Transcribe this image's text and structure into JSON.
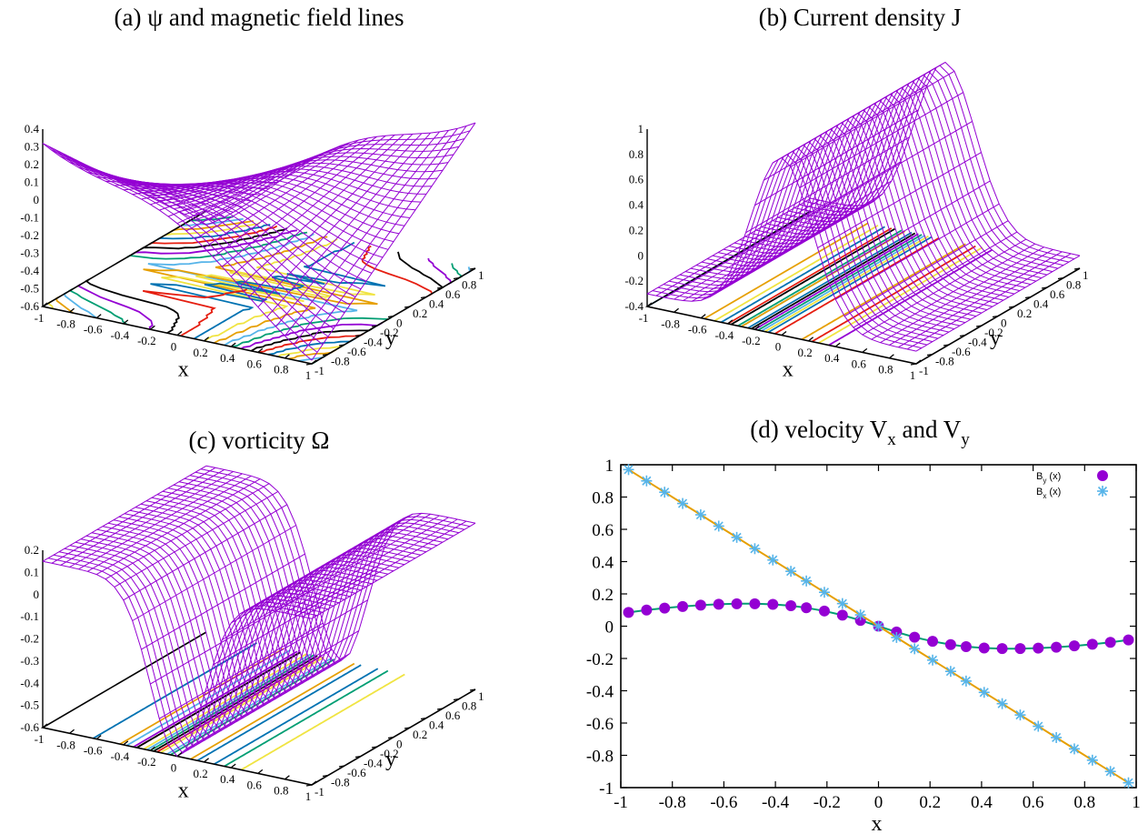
{
  "chart_data": [
    {
      "id": "a",
      "type": "surface3d",
      "title": "(a) ψ and magnetic field lines",
      "xlabel": "x",
      "ylabel": "y",
      "xticks": [
        "-1",
        "-0.8",
        "-0.6",
        "-0.4",
        "-0.2",
        "0",
        "0.2",
        "0.4",
        "0.6",
        "0.8",
        "1"
      ],
      "yticks": [
        "-1",
        "-0.8",
        "-0.6",
        "-0.4",
        "-0.2",
        "0",
        "0.2",
        "0.4",
        "0.6",
        "0.8",
        "1"
      ],
      "zticks": [
        "0.4",
        "0.3",
        "0.2",
        "0.1",
        "0",
        "-0.1",
        "-0.2",
        "-0.3",
        "-0.4",
        "-0.5",
        "-0.6"
      ],
      "zlim": [
        -0.6,
        0.4
      ],
      "surface_color": "#9400d3",
      "base_contours": true
    },
    {
      "id": "b",
      "type": "surface3d",
      "title": "(b) Current density J",
      "xlabel": "x",
      "ylabel": "y",
      "xticks": [
        "-1",
        "-0.8",
        "-0.6",
        "-0.4",
        "-0.2",
        "0",
        "0.2",
        "0.4",
        "0.6",
        "0.8",
        "1"
      ],
      "yticks": [
        "-1",
        "-0.8",
        "-0.6",
        "-0.4",
        "-0.2",
        "0",
        "0.2",
        "0.4",
        "0.6",
        "0.8",
        "1"
      ],
      "zticks": [
        "1",
        "0.8",
        "0.6",
        "0.4",
        "0.2",
        "0",
        "-0.2",
        "-0.4"
      ],
      "zlim": [
        -0.4,
        1
      ],
      "surface_color": "#9400d3",
      "base_contours": true
    },
    {
      "id": "c",
      "type": "surface3d",
      "title": "(c) vorticity Ω",
      "xlabel": "x",
      "ylabel": "y",
      "xticks": [
        "-1",
        "-0.8",
        "-0.6",
        "-0.4",
        "-0.2",
        "0",
        "0.2",
        "0.4",
        "0.6",
        "0.8",
        "1"
      ],
      "yticks": [
        "-1",
        "-0.8",
        "-0.6",
        "-0.4",
        "-0.2",
        "0",
        "0.2",
        "0.4",
        "0.6",
        "0.8",
        "1"
      ],
      "zticks": [
        "0.2",
        "0.1",
        "0",
        "-0.1",
        "-0.2",
        "-0.3",
        "-0.4",
        "-0.5",
        "-0.6"
      ],
      "zlim": [
        -0.6,
        0.2
      ],
      "surface_color": "#9400d3",
      "base_contours": true
    },
    {
      "id": "d",
      "type": "line",
      "title_main": "(d) velocity V",
      "title_sub1": "x",
      "title_mid": " and V",
      "title_sub2": "y",
      "xlabel": "x",
      "xlim": [
        -1,
        1
      ],
      "ylim": [
        -1,
        1
      ],
      "xticks": [
        "-1",
        "-0.8",
        "-0.6",
        "-0.4",
        "-0.2",
        "0",
        "0.2",
        "0.4",
        "0.6",
        "0.8",
        "1"
      ],
      "yticks": [
        "1",
        "0.8",
        "0.6",
        "0.4",
        "0.2",
        "0",
        "-0.2",
        "-0.4",
        "-0.6",
        "-0.8",
        "-1"
      ],
      "series": [
        {
          "name": "B",
          "name_sub": "y",
          "name_tail": " (x)",
          "marker": "circle",
          "marker_color": "#9400d3",
          "line_color": "#009e73",
          "x": [
            -0.97,
            -0.9,
            -0.83,
            -0.76,
            -0.69,
            -0.62,
            -0.55,
            -0.48,
            -0.41,
            -0.34,
            -0.28,
            -0.21,
            -0.14,
            -0.07,
            0.0,
            0.07,
            0.14,
            0.21,
            0.28,
            0.34,
            0.41,
            0.48,
            0.55,
            0.62,
            0.69,
            0.76,
            0.83,
            0.9,
            0.97
          ],
          "y": [
            0.085,
            0.1,
            0.112,
            0.122,
            0.13,
            0.136,
            0.139,
            0.139,
            0.135,
            0.127,
            0.114,
            0.094,
            0.068,
            0.036,
            0.0,
            -0.036,
            -0.068,
            -0.094,
            -0.114,
            -0.127,
            -0.135,
            -0.139,
            -0.139,
            -0.136,
            -0.13,
            -0.122,
            -0.112,
            -0.1,
            -0.085
          ]
        },
        {
          "name": "B",
          "name_sub": "x",
          "name_tail": " (x)",
          "marker": "star",
          "marker_color": "#56b4e9",
          "line_color": "#e69f00",
          "x": [
            -0.97,
            -0.9,
            -0.83,
            -0.76,
            -0.69,
            -0.62,
            -0.55,
            -0.48,
            -0.41,
            -0.34,
            -0.28,
            -0.21,
            -0.14,
            -0.07,
            0.0,
            0.07,
            0.14,
            0.21,
            0.28,
            0.34,
            0.41,
            0.48,
            0.55,
            0.62,
            0.69,
            0.76,
            0.83,
            0.9,
            0.97
          ],
          "y": [
            0.97,
            0.9,
            0.83,
            0.76,
            0.69,
            0.62,
            0.55,
            0.48,
            0.41,
            0.34,
            0.28,
            0.21,
            0.14,
            0.07,
            0.0,
            -0.07,
            -0.14,
            -0.21,
            -0.28,
            -0.34,
            -0.41,
            -0.48,
            -0.55,
            -0.62,
            -0.69,
            -0.76,
            -0.83,
            -0.9,
            -0.97
          ]
        }
      ]
    }
  ]
}
